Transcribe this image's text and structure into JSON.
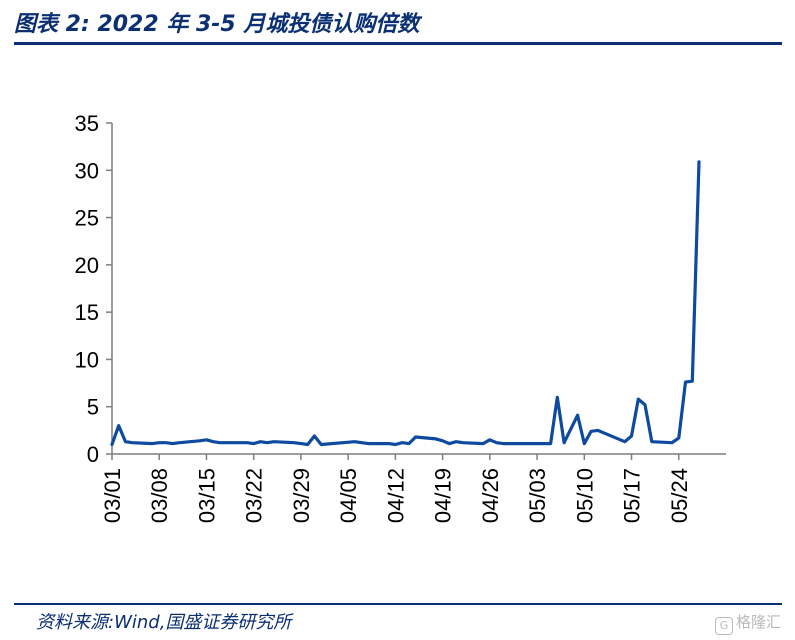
{
  "title": "图表 2:  2022 年 3-5 月城投债认购倍数",
  "source": "资料来源:Wind,国盛证券研究所",
  "watermark": "格隆汇",
  "colors": {
    "line": "#0d4aa0",
    "accent": "#0b2f73",
    "axis": "#7f7f7f"
  },
  "chart_data": {
    "type": "line",
    "title": "",
    "xlabel": "",
    "ylabel": "",
    "ylim": [
      0,
      35
    ],
    "yticks": [
      0,
      5,
      10,
      15,
      20,
      25,
      30,
      35
    ],
    "xlim": [
      "2022-03-01",
      "2022-05-31"
    ],
    "xtick_labels": [
      "03/01",
      "03/08",
      "03/15",
      "03/22",
      "03/29",
      "04/05",
      "04/12",
      "04/19",
      "04/26",
      "05/03",
      "05/10",
      "05/17",
      "05/24"
    ],
    "xtick_dates": [
      "2022-03-01",
      "2022-03-08",
      "2022-03-15",
      "2022-03-22",
      "2022-03-29",
      "2022-04-05",
      "2022-04-12",
      "2022-04-19",
      "2022-04-26",
      "2022-05-03",
      "2022-05-10",
      "2022-05-17",
      "2022-05-24"
    ],
    "grid": false,
    "legend": "none",
    "series": [
      {
        "x": [
          "2022-03-01",
          "2022-03-02",
          "2022-03-03",
          "2022-03-04",
          "2022-03-07",
          "2022-03-08",
          "2022-03-09",
          "2022-03-10",
          "2022-03-11",
          "2022-03-14",
          "2022-03-15",
          "2022-03-16",
          "2022-03-17",
          "2022-03-18",
          "2022-03-21",
          "2022-03-22",
          "2022-03-23",
          "2022-03-24",
          "2022-03-25",
          "2022-03-28",
          "2022-03-29",
          "2022-03-30",
          "2022-03-31",
          "2022-04-01",
          "2022-04-06",
          "2022-04-07",
          "2022-04-08",
          "2022-04-11",
          "2022-04-12",
          "2022-04-13",
          "2022-04-14",
          "2022-04-15",
          "2022-04-18",
          "2022-04-19",
          "2022-04-20",
          "2022-04-21",
          "2022-04-22",
          "2022-04-25",
          "2022-04-26",
          "2022-04-27",
          "2022-04-28",
          "2022-04-29",
          "2022-05-05",
          "2022-05-06",
          "2022-05-07",
          "2022-05-09",
          "2022-05-10",
          "2022-05-11",
          "2022-05-12",
          "2022-05-13",
          "2022-05-16",
          "2022-05-17",
          "2022-05-18",
          "2022-05-19",
          "2022-05-20",
          "2022-05-23",
          "2022-05-24",
          "2022-05-25",
          "2022-05-26",
          "2022-05-27"
        ],
        "y": [
          1.0,
          3.0,
          1.3,
          1.2,
          1.1,
          1.2,
          1.2,
          1.1,
          1.2,
          1.4,
          1.5,
          1.3,
          1.2,
          1.2,
          1.2,
          1.1,
          1.3,
          1.2,
          1.3,
          1.2,
          1.1,
          1.0,
          1.9,
          1.0,
          1.3,
          1.2,
          1.1,
          1.1,
          1.0,
          1.2,
          1.1,
          1.8,
          1.6,
          1.4,
          1.1,
          1.3,
          1.2,
          1.1,
          1.5,
          1.2,
          1.1,
          1.1,
          1.1,
          6.0,
          1.2,
          4.1,
          1.1,
          2.4,
          2.5,
          2.2,
          1.3,
          1.9,
          5.8,
          5.2,
          1.3,
          1.2,
          1.7,
          7.6,
          7.7,
          30.9
        ]
      }
    ]
  }
}
